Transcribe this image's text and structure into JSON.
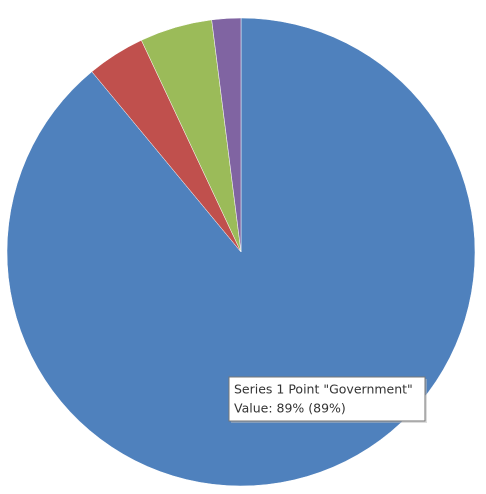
{
  "chart_data": {
    "type": "pie",
    "values": [
      89,
      4,
      5,
      2
    ],
    "colors": [
      "#4f81bd",
      "#c0504d",
      "#9bbb59",
      "#8064a2"
    ],
    "start_angle": 0,
    "direction": "clockwise",
    "tooltip": {
      "title": "Series 1 Point \"Government\"",
      "value": "Value: 89% (89%)"
    }
  }
}
